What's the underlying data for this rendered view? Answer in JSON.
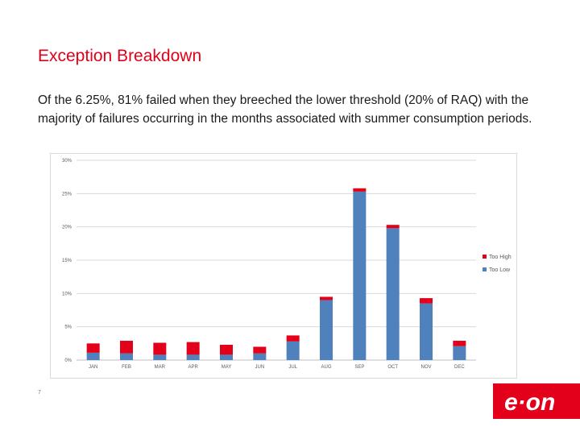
{
  "slide": {
    "title": "Exception Breakdown",
    "body": "Of the 6.25%, 81% failed when they breeched the lower threshold (20% of RAQ) with the majority of failures occurring in the months associated with summer consumption periods.",
    "page_number": "7",
    "logo_text": "e·on"
  },
  "colors": {
    "accent": "#e2001a",
    "too_high": "#e2001a",
    "too_low": "#4f81bd"
  },
  "chart_data": {
    "type": "bar",
    "stacked": true,
    "categories": [
      "JAN",
      "FEB",
      "MAR",
      "APR",
      "MAY",
      "JUN",
      "JUL",
      "AUG",
      "SEP",
      "OCT",
      "NOV",
      "DEC"
    ],
    "series": [
      {
        "name": "Too Low",
        "values": [
          1.1,
          1.0,
          0.8,
          0.8,
          0.8,
          1.0,
          2.8,
          9.0,
          25.3,
          19.8,
          8.5,
          2.1
        ]
      },
      {
        "name": "Too High",
        "values": [
          1.4,
          1.9,
          1.8,
          1.9,
          1.5,
          1.0,
          0.9,
          0.5,
          0.5,
          0.5,
          0.8,
          0.8
        ]
      }
    ],
    "ylim": [
      0,
      30
    ],
    "yticks": [
      "0%",
      "5%",
      "10%",
      "15%",
      "20%",
      "25%",
      "30%"
    ],
    "legend_position": "right",
    "grid": true
  }
}
